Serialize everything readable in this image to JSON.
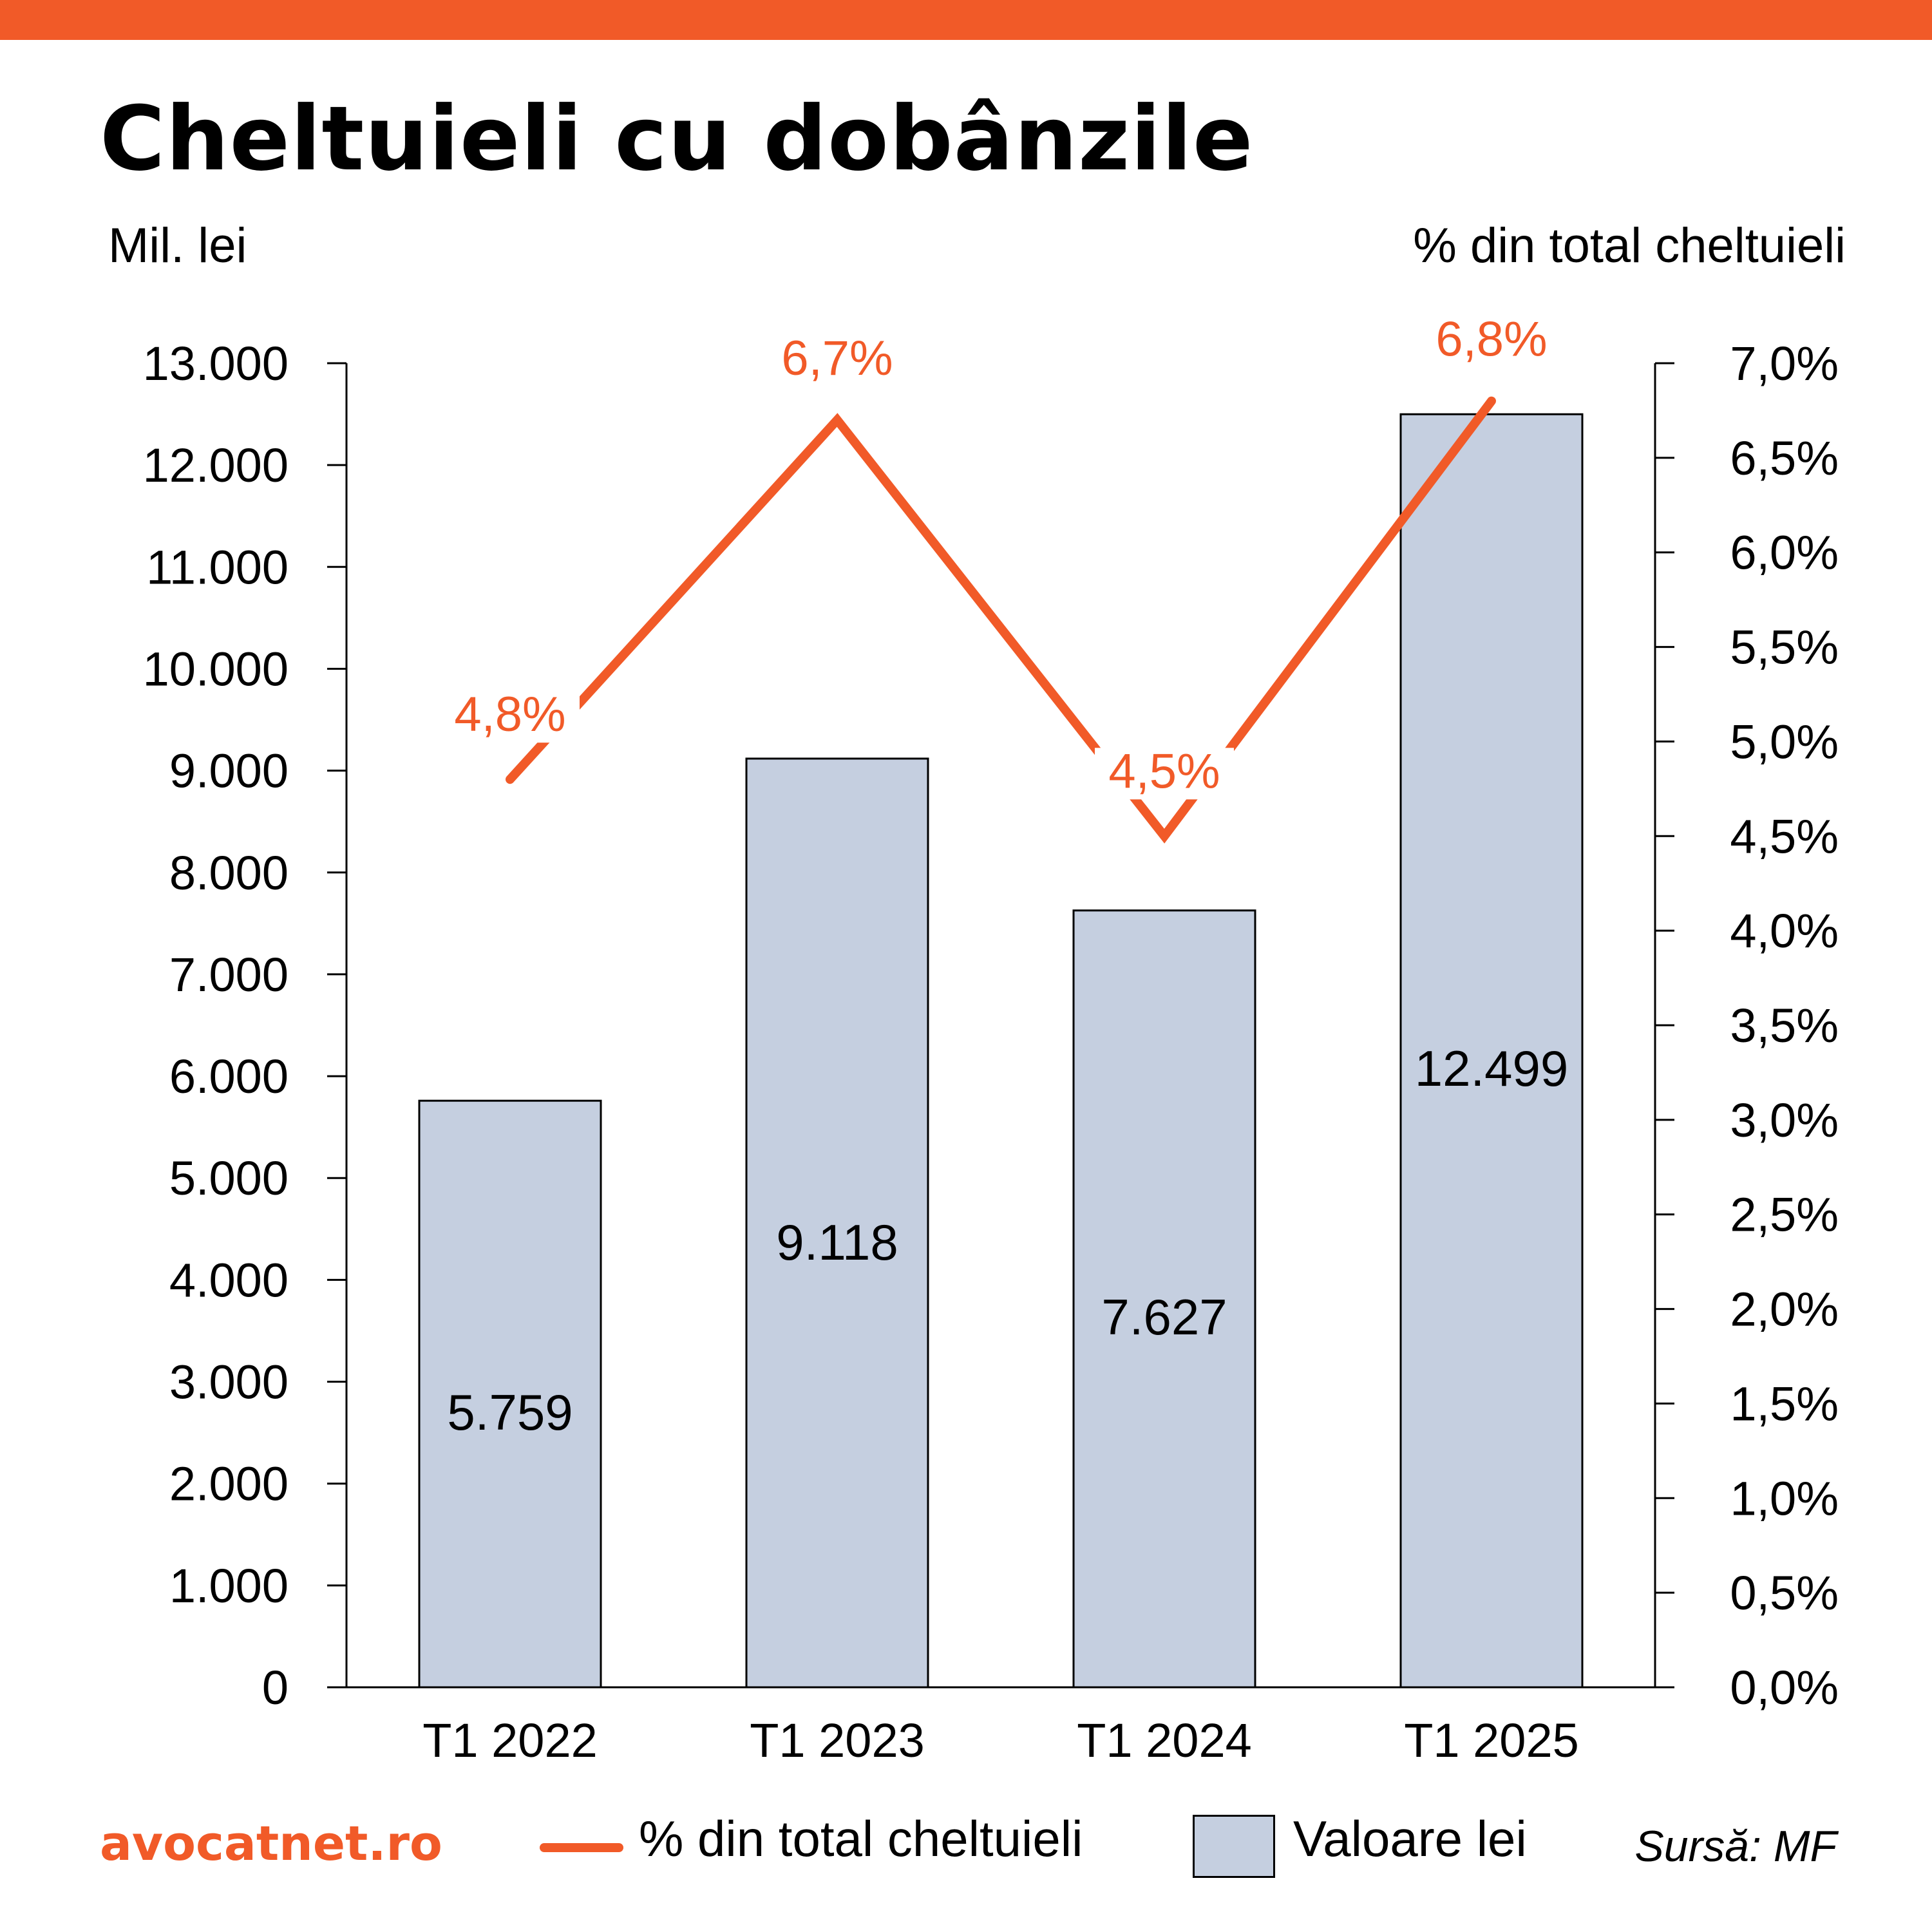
{
  "title": "Cheltuieli cu dobânzile",
  "left_unit": "Mil. lei",
  "right_unit": "% din total cheltuieli",
  "brand": "avocatnet.ro",
  "source": "Sursă: MF",
  "colors": {
    "accent": "#f15a28",
    "bar_fill": "#c5cfe0",
    "bar_stroke": "#000000"
  },
  "chart_data": {
    "type": "bar",
    "categories": [
      "T1 2022",
      "T1 2023",
      "T1 2024",
      "T1 2025"
    ],
    "series": [
      {
        "name": "Valoare lei",
        "type": "bar",
        "axis": "left",
        "values": [
          5759,
          9118,
          7627,
          12499
        ],
        "labels": [
          "5.759",
          "9.118",
          "7.627",
          "12.499"
        ]
      },
      {
        "name": "% din total cheltuieli",
        "type": "line",
        "axis": "right",
        "values": [
          4.8,
          6.7,
          4.5,
          6.8
        ],
        "labels": [
          "4,8%",
          "6,7%",
          "4,5%",
          "6,8%"
        ]
      }
    ],
    "y_left": {
      "label": "Mil. lei",
      "range": [
        0,
        13000
      ],
      "ticks": [
        "0",
        "1.000",
        "2.000",
        "3.000",
        "4.000",
        "5.000",
        "6.000",
        "7.000",
        "8.000",
        "9.000",
        "10.000",
        "11.000",
        "12.000",
        "13.000"
      ]
    },
    "y_right": {
      "label": "% din total cheltuieli",
      "range": [
        0,
        7
      ],
      "ticks": [
        "0,0%",
        "0,5%",
        "1,0%",
        "1,5%",
        "2,0%",
        "2,5%",
        "3,0%",
        "3,5%",
        "4,0%",
        "4,5%",
        "5,0%",
        "5,5%",
        "6,0%",
        "6,5%",
        "7,0%"
      ]
    },
    "grid": false,
    "legend": "bottom"
  }
}
